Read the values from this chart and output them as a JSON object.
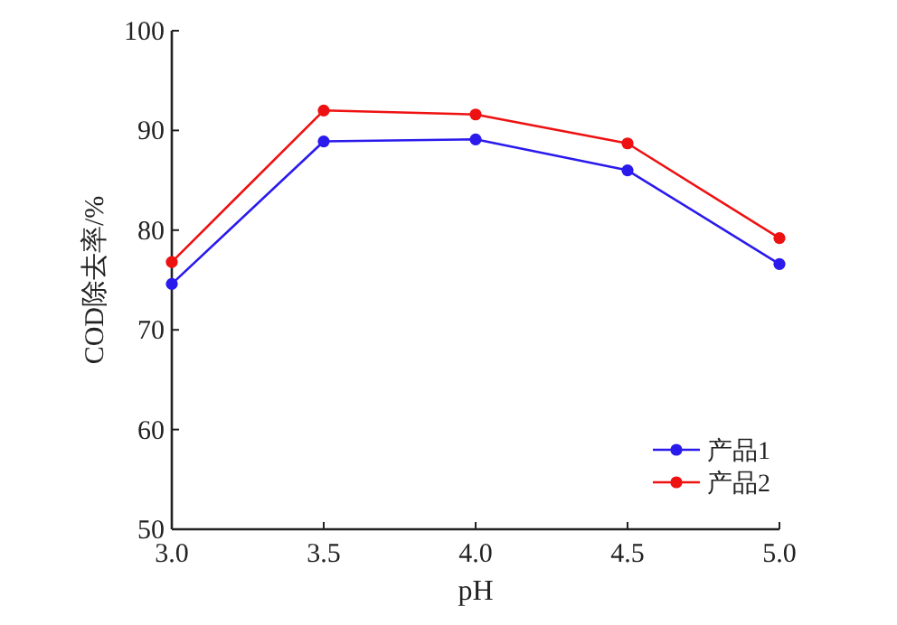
{
  "chart_data": {
    "type": "line",
    "xlabel": "pH",
    "ylabel": "COD除去率/%",
    "x": [
      3.0,
      3.5,
      4.0,
      4.5,
      5.0
    ],
    "xlim": [
      3,
      5
    ],
    "xticks": [
      {
        "value": 3,
        "label": "3.0"
      },
      {
        "value": 3.5,
        "label": "3.5"
      },
      {
        "value": 4,
        "label": "4.0"
      },
      {
        "value": 4.5,
        "label": "4.5"
      },
      {
        "value": 5,
        "label": "5.0"
      }
    ],
    "ylim": [
      50,
      100
    ],
    "yticks": [
      50,
      60,
      70,
      80,
      90,
      100
    ],
    "grid": false,
    "legend": "bottom right",
    "marker": "circle",
    "line_style": "solid",
    "series": [
      {
        "name": "产品1",
        "color": "#2a1aec",
        "values": [
          74.6,
          88.9,
          89.1,
          86.0,
          76.6
        ]
      },
      {
        "name": "产品2",
        "color": "#ee1111",
        "values": [
          76.8,
          92.0,
          91.6,
          88.7,
          79.2
        ]
      }
    ]
  }
}
